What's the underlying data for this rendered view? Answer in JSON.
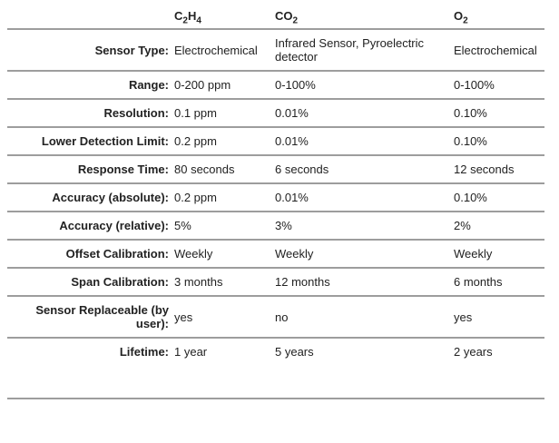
{
  "page": {
    "background_color": "#ffffff",
    "text_color": "#222222",
    "divider_color": "#9d9d9d"
  },
  "table": {
    "gas_columns": [
      {
        "formula": "C2H4",
        "parts": [
          "C",
          "2",
          "H",
          "4"
        ]
      },
      {
        "formula": "CO2",
        "parts": [
          "CO",
          "2"
        ]
      },
      {
        "formula": "O2",
        "parts": [
          "O",
          "2"
        ]
      }
    ],
    "rows": [
      {
        "label": "Sensor Type:",
        "values": [
          "Electrochemical",
          "Infrared Sensor, Pyroelectric detector",
          "Electrochemical"
        ]
      },
      {
        "label": "Range:",
        "values": [
          "0-200 ppm",
          "0-100%",
          "0-100%"
        ]
      },
      {
        "label": "Resolution:",
        "values": [
          "0.1 ppm",
          "0.01%",
          "0.10%"
        ]
      },
      {
        "label": "Lower Detection Limit:",
        "values": [
          "0.2 ppm",
          "0.01%",
          "0.10%"
        ]
      },
      {
        "label": "Response Time:",
        "values": [
          "80 seconds",
          "6 seconds",
          "12 seconds"
        ]
      },
      {
        "label": "Accuracy (absolute):",
        "values": [
          "0.2 ppm",
          "0.01%",
          "0.10%"
        ]
      },
      {
        "label": "Accuracy (relative):",
        "values": [
          "5%",
          "3%",
          "2%"
        ]
      },
      {
        "label": "Offset Calibration:",
        "values": [
          "Weekly",
          "Weekly",
          "Weekly"
        ]
      },
      {
        "label": "Span Calibration:",
        "values": [
          "3 months",
          "12 months",
          "6 months"
        ]
      },
      {
        "label": "Sensor Replaceable (by user):",
        "values": [
          "yes",
          "no",
          "yes"
        ]
      },
      {
        "label": "Lifetime:",
        "values": [
          "1 year",
          "5 years",
          "2 years"
        ]
      }
    ]
  }
}
